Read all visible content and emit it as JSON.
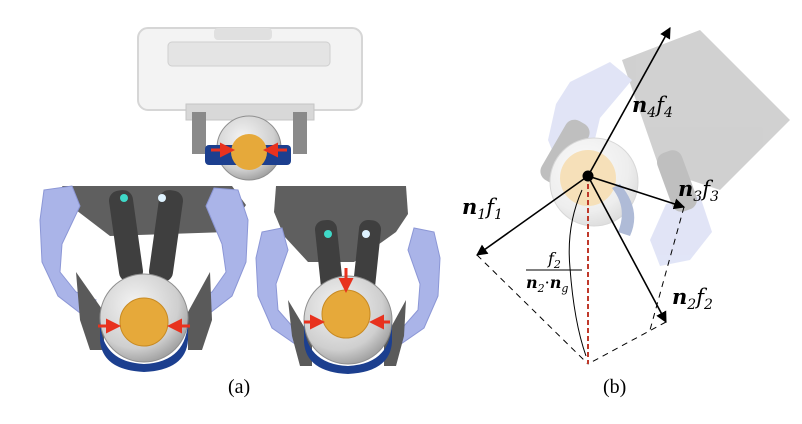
{
  "captions": {
    "left": "(a)",
    "right": "(b)"
  },
  "vectors": {
    "n1f1": {
      "n": "n",
      "sub": "1",
      "f": "f",
      "fsub": "1"
    },
    "n2f2": {
      "n": "n",
      "sub": "2",
      "f": "f",
      "fsub": "2"
    },
    "n3f3": {
      "n": "n",
      "sub": "3",
      "f": "f",
      "fsub": "3"
    },
    "n4f4": {
      "n": "n",
      "sub": "4",
      "f": "f",
      "fsub": "4"
    },
    "fraction": {
      "num_f": "f",
      "num_sub": "2",
      "den_n1": "n",
      "den_sub1": "2",
      "dot": "·",
      "den_n2": "n",
      "den_sub2": "g"
    }
  },
  "colors": {
    "gripper_gray": "#6b6b6b",
    "gripper_dark": "#4a4a4a",
    "finger_blue": "#aab4e8",
    "ball_yellow": "#e6a93a",
    "ball_blue": "#1c3f8f",
    "arrow_red": "#e8321e",
    "dashed_red": "#c0392b"
  }
}
